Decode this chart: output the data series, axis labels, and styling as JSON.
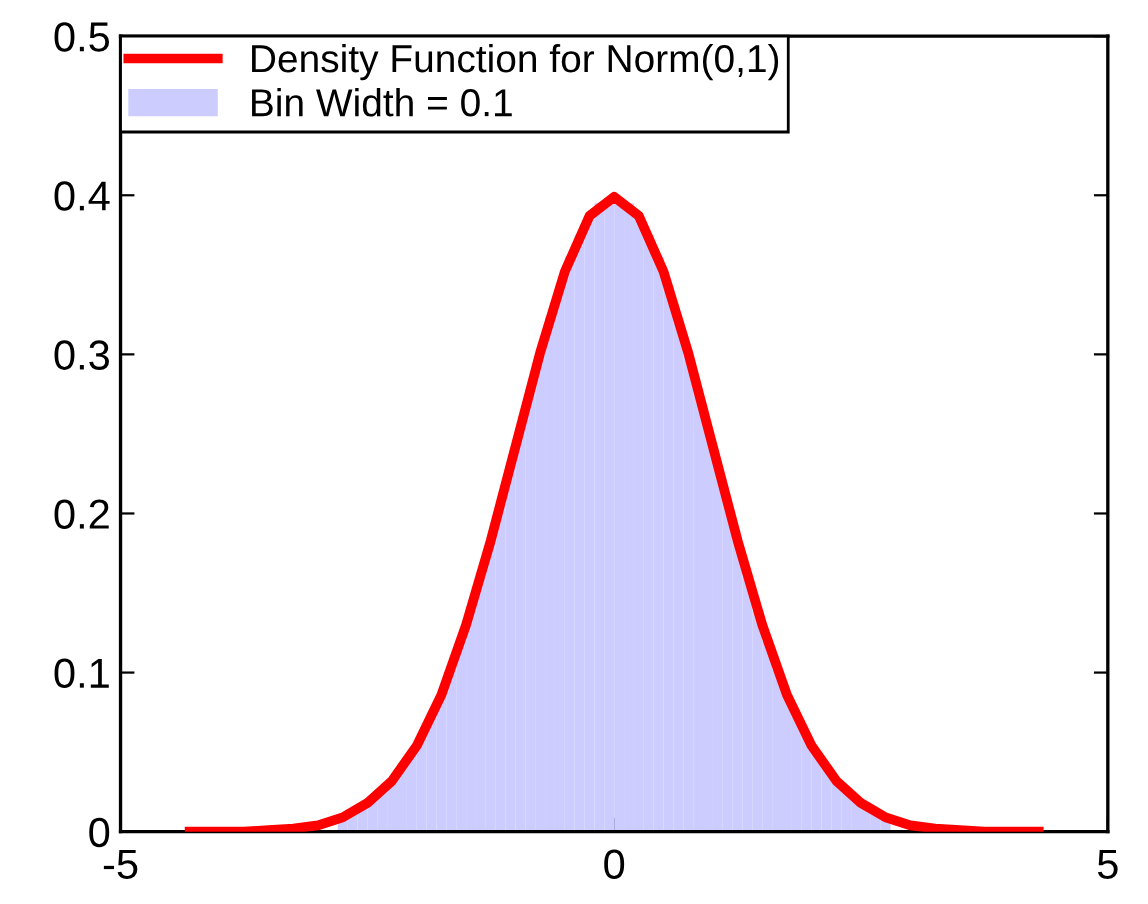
{
  "chart_data": {
    "type": "histogram",
    "xlim": [
      -5,
      5
    ],
    "xticks": [
      -5,
      0,
      5
    ],
    "ylim": [
      0,
      0.5
    ],
    "yticks": [
      0,
      0.1,
      0.2,
      0.3,
      0.4,
      0.5
    ],
    "grid": false,
    "legend": "top left",
    "series": [
      {
        "name": "Density Function for Norm(0,1)",
        "type": "line",
        "color": "#ff0000",
        "x": [
          -4.3,
          -4,
          -3.75,
          -3.5,
          -3.25,
          -3,
          -2.75,
          -2.5,
          -2.25,
          -2,
          -1.75,
          -1.5,
          -1.25,
          -1,
          -0.75,
          -0.5,
          -0.25,
          0,
          0.25,
          0.5,
          0.75,
          1,
          1.25,
          1.5,
          1.75,
          2,
          2.25,
          2.5,
          2.75,
          3,
          3.25,
          3.5,
          3.75,
          4,
          4.3
        ],
        "values": [
          0,
          0,
          0,
          0.001,
          0.002,
          0.004,
          0.009,
          0.018,
          0.032,
          0.054,
          0.086,
          0.13,
          0.183,
          0.242,
          0.301,
          0.352,
          0.387,
          0.399,
          0.387,
          0.352,
          0.301,
          0.242,
          0.183,
          0.13,
          0.086,
          0.054,
          0.032,
          0.018,
          0.009,
          0.004,
          0.002,
          0.001,
          0,
          0,
          0
        ]
      },
      {
        "name": "Bin Width = 0.1",
        "color": "#ccccff",
        "bins": [
          -3.5,
          -3.4,
          -3.3,
          -3.2,
          -3.1,
          -3.0,
          -2.9,
          -2.8,
          -2.7,
          -2.6,
          -2.5,
          -2.4,
          -2.3,
          -2.2,
          -2.1,
          -2.0,
          -1.9,
          -1.8,
          -1.7,
          -1.6,
          -1.5,
          -1.4,
          -1.3,
          -1.2,
          -1.1,
          -1.0,
          -0.9,
          -0.8,
          -0.7,
          -0.6,
          -0.5,
          -0.4,
          -0.3,
          -0.2,
          -0.1,
          0,
          0.1,
          0.2,
          0.3,
          0.4,
          0.5,
          0.6,
          0.7,
          0.8,
          0.9,
          1.0,
          1.1,
          1.2,
          1.3,
          1.4,
          1.5,
          1.6,
          1.7,
          1.8,
          1.9,
          2.0,
          2.1,
          2.2,
          2.3,
          2.4,
          2.5,
          2.6,
          2.7,
          2.8,
          2.9,
          3.0,
          3.1,
          3.2,
          3.3,
          3.4,
          3.5
        ],
        "values": [
          null,
          null,
          null,
          null,
          null,
          null,
          null,
          0.009,
          0.012,
          0.015,
          0.02,
          0.025,
          0.032,
          0.04,
          0.049,
          0.06,
          0.072,
          0.086,
          0.102,
          0.12,
          0.139,
          0.16,
          0.183,
          0.206,
          0.23,
          0.254,
          0.278,
          0.301,
          0.323,
          0.343,
          0.361,
          0.375,
          0.387,
          0.395,
          0.398,
          0.398,
          0.395,
          0.387,
          0.375,
          0.361,
          0.343,
          0.323,
          0.301,
          0.278,
          0.254,
          0.23,
          0.206,
          0.183,
          0.16,
          0.139,
          0.12,
          0.102,
          0.086,
          0.072,
          0.06,
          0.049,
          0.04,
          0.032,
          0.025,
          0.02,
          0.015,
          0.012,
          0.009,
          null,
          null,
          null,
          null,
          null,
          null,
          null
        ]
      }
    ]
  }
}
